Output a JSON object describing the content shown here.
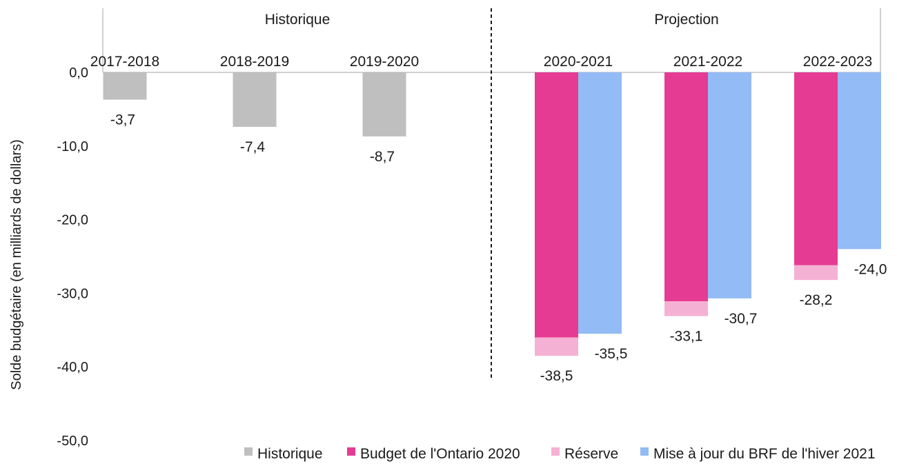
{
  "chart_data": {
    "type": "bar",
    "ylabel": "Solde budgétaire (en milliards de dollars)",
    "ylim": [
      -50,
      0
    ],
    "y_ticks": [
      "0,0",
      "-10,0",
      "-20,0",
      "-30,0",
      "-40,0",
      "-50,0"
    ],
    "y_tick_values": [
      0,
      -10,
      -20,
      -30,
      -40,
      -50
    ],
    "sections": [
      {
        "label": "Historique"
      },
      {
        "label": "Projection"
      }
    ],
    "categories": [
      "2017-2018",
      "2018-2019",
      "2019-2020",
      "2020-2021",
      "2021-2022",
      "2022-2023"
    ],
    "series": [
      {
        "name": "Historique",
        "color": "#bfbfbf",
        "values": [
          -3.7,
          -7.4,
          -8.7,
          null,
          null,
          null
        ]
      },
      {
        "name": "Budget de l'Ontario 2020",
        "color": "#e53b93",
        "values": [
          null,
          null,
          null,
          -36.0,
          -31.1,
          -26.2
        ]
      },
      {
        "name": "Réserve",
        "color": "#f5b1d4",
        "values": [
          null,
          null,
          null,
          -2.5,
          -2.0,
          -2.0
        ]
      },
      {
        "name": "Mise à jour du BRF de l'hiver 2021",
        "color": "#93bbf5",
        "values": [
          null,
          null,
          null,
          -35.5,
          -30.7,
          -24.0
        ]
      }
    ],
    "data_labels": {
      "historique": [
        "-3,7",
        "-7,4",
        "-8,7"
      ],
      "budget_total": [
        "-38,5",
        "-33,1",
        "-28,2"
      ],
      "brf": [
        "-35,5",
        "-30,7",
        "-24,0"
      ]
    },
    "legend_position": "bottom-right",
    "grid": false
  }
}
